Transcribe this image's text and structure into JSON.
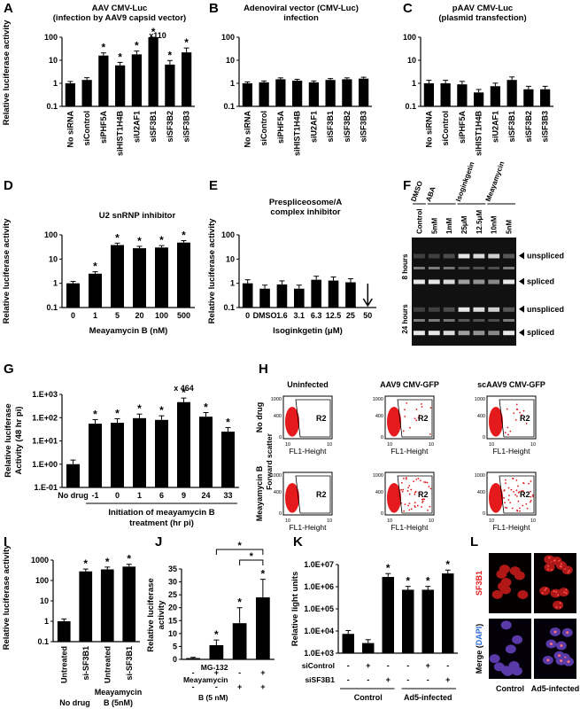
{
  "panels": {
    "A": {
      "label": "A",
      "title_1": "AAV CMV-Luc",
      "title_2": "(infection by AAV9 capsid vector)",
      "ylabel": "Relative luciferase activity"
    },
    "B": {
      "label": "B",
      "title_1": "Adenoviral vector (CMV-Luc)",
      "title_2": "infection"
    },
    "C": {
      "label": "C",
      "title_1": "pAAV CMV-Luc",
      "title_2": "(plasmid transfection)"
    },
    "D": {
      "label": "D",
      "title": "U2 snRNP inhibitor",
      "ylabel": "Relative luciferase activity",
      "xlabel": "Meayamycin B (nM)"
    },
    "E": {
      "label": "E",
      "title_1": "Prespliceosome/A",
      "title_2": "complex inhibitor",
      "ylabel": "Relative luciferase activity",
      "xlabel": "Isoginkgetin (μM)"
    },
    "F": {
      "label": "F",
      "lanes": [
        "Control",
        "5mM",
        "1mM",
        "25μM",
        "12.5μM",
        "10nM",
        "5nM"
      ],
      "groups": [
        "DMSO",
        "ABA",
        "Isoginkgetin",
        "Meayamycin"
      ],
      "rows": [
        "8 hours",
        "24 hours"
      ],
      "bands": [
        "unspliced",
        "spliced"
      ]
    },
    "G": {
      "label": "G",
      "ylabel_1": "Relative luciferase",
      "ylabel_2": "Activity (48 hr pi)",
      "xlabel_1": "Initiation of meayamycin B",
      "xlabel_2": "treatment (hr pi)",
      "nodrug": "No drug",
      "annotation": "x 464"
    },
    "H": {
      "label": "H",
      "cols": [
        "Uninfected",
        "AAV9 CMV-GFP",
        "scAAV9 CMV-GFP"
      ],
      "rows": [
        "No drug",
        "Meayamycin B"
      ],
      "yaxis": "Forward scatter",
      "xaxis": "FL1-Height",
      "gate": "R2",
      "ytick": "1000",
      "yticks": [
        "1000",
        "800",
        "600",
        "400",
        "200",
        "0"
      ],
      "xt0": "10",
      "xt1": "10"
    },
    "I": {
      "label": "I",
      "ylabel": "Relative luciferase activity",
      "groups": [
        "No drug",
        "Meayamycin",
        "B (5nM)"
      ]
    },
    "J": {
      "label": "J",
      "ylabel_1": "Relative luciferase",
      "ylabel_2": "activity",
      "row1": "MG-132",
      "row2_1": "Meayamycin",
      "row2_2": "B (5 nM)"
    },
    "K": {
      "label": "K",
      "ylabel": "Relative light units",
      "row1": "siControl",
      "row2": "siSF3B1",
      "groups": [
        "Control",
        "Ad5-infected"
      ]
    },
    "L": {
      "label": "L",
      "top": "SF3B1",
      "bottom_1": "Merge (",
      "bottom_dapi": "DAPI",
      "bottom_2": ")",
      "cols": [
        "Control",
        "Ad5-infected"
      ]
    }
  },
  "chart_data": [
    {
      "panel": "A",
      "type": "bar",
      "ylim": [
        0.1,
        100
      ],
      "scale": "log",
      "yticks": [
        "100",
        "10",
        "1",
        "0.1"
      ],
      "categories": [
        "No siRNA",
        "siControl",
        "siPHF5A",
        "siHIST1H4B",
        "siU2AF1",
        "siSF3B1",
        "siSF3B2",
        "siSF3B3"
      ],
      "values": [
        1,
        1.4,
        16,
        6,
        18,
        110,
        6.5,
        22
      ],
      "star": [
        false,
        false,
        true,
        true,
        true,
        true,
        true,
        true
      ],
      "annotation": "x110"
    },
    {
      "panel": "B",
      "type": "bar",
      "ylim": [
        0.1,
        100
      ],
      "scale": "log",
      "yticks": [
        "100",
        "10",
        "1",
        "0.1"
      ],
      "categories": [
        "No siRNA",
        "siControl",
        "siPHF5A",
        "siHIST1H4B",
        "siU2AF1",
        "siSF3B1",
        "siSF3B2",
        "siSF3B3"
      ],
      "values": [
        1,
        1.1,
        1.5,
        1.3,
        1.1,
        1.4,
        1.5,
        1.6
      ]
    },
    {
      "panel": "C",
      "type": "bar",
      "ylim": [
        0.1,
        100
      ],
      "scale": "log",
      "yticks": [
        "100",
        "10",
        "1",
        "0.1"
      ],
      "categories": [
        "No siRNA",
        "siControl",
        "siPHF5A",
        "siHIST1H4B",
        "siU2AF1",
        "siSF3B1",
        "siSF3B2",
        "siSF3B3"
      ],
      "values": [
        1,
        1,
        0.9,
        0.4,
        0.75,
        1.4,
        0.55,
        0.55
      ]
    },
    {
      "panel": "D",
      "type": "bar",
      "ylim": [
        0.1,
        100
      ],
      "scale": "log",
      "yticks": [
        "100",
        "10",
        "1",
        "0.1"
      ],
      "categories": [
        "0",
        "1",
        "5",
        "20",
        "100",
        "500"
      ],
      "values": [
        1,
        2.5,
        38,
        28,
        30,
        48
      ],
      "star": [
        false,
        true,
        true,
        true,
        true,
        true
      ]
    },
    {
      "panel": "E",
      "type": "bar",
      "ylim": [
        0.1,
        100
      ],
      "scale": "log",
      "yticks": [
        "100",
        "10",
        "1",
        "0.1"
      ],
      "categories": [
        "0",
        "DMSO",
        "1.6",
        "3.1",
        "6.3",
        "12.5",
        "25",
        "50"
      ],
      "values": [
        1,
        0.6,
        0.9,
        0.6,
        1.4,
        1.3,
        1.1,
        null
      ]
    },
    {
      "panel": "G",
      "type": "bar",
      "ylim": [
        0.1,
        1000
      ],
      "scale": "log",
      "yticks": [
        "1.E+03",
        "1.E+02",
        "1.E+01",
        "1.E+00",
        "1.E-01"
      ],
      "categories": [
        "No drug",
        "-1",
        "0",
        "1",
        "6",
        "9",
        "24",
        "33"
      ],
      "values": [
        1,
        55,
        60,
        95,
        80,
        464,
        110,
        25
      ],
      "star": [
        false,
        true,
        true,
        true,
        true,
        true,
        true,
        true
      ]
    },
    {
      "panel": "I",
      "type": "bar",
      "ylim": [
        0.1,
        1000
      ],
      "scale": "log",
      "yticks": [
        "1000",
        "100",
        "10",
        "1",
        "0.1"
      ],
      "categories": [
        "Untreated",
        "si-SF3B1",
        "Untreated",
        "si-SF3B1"
      ],
      "values": [
        1,
        280,
        350,
        480
      ],
      "star": [
        false,
        true,
        true,
        true
      ]
    },
    {
      "panel": "J",
      "type": "bar",
      "ylim": [
        0,
        35
      ],
      "scale": "linear",
      "yticks": [
        "35",
        "30",
        "25",
        "20",
        "15",
        "10",
        "5",
        "0"
      ],
      "categories": [
        "1",
        "2",
        "3",
        "4"
      ],
      "row1": [
        "-",
        "+",
        "-",
        "+"
      ],
      "row2": [
        "-",
        "-",
        "+",
        "+"
      ],
      "values": [
        0.5,
        5.5,
        14,
        24
      ],
      "star": [
        false,
        true,
        true,
        true
      ]
    },
    {
      "panel": "K",
      "type": "bar",
      "ylim": [
        10000,
        10000000
      ],
      "scale": "log",
      "yticks": [
        "1.0E+07",
        "1.0E+06",
        "1.0E+05",
        "1.0E+04",
        "1.0E+03"
      ],
      "categories": [
        "1",
        "2",
        "3",
        "4",
        "5",
        "6"
      ],
      "row1": [
        "-",
        "+",
        "-",
        "-",
        "+",
        "-"
      ],
      "row2": [
        "-",
        "-",
        "+",
        "-",
        "-",
        "+"
      ],
      "values": [
        45000,
        22000,
        3800000,
        1400000,
        1400000,
        5000000
      ],
      "star": [
        false,
        false,
        true,
        true,
        true,
        true
      ]
    }
  ]
}
